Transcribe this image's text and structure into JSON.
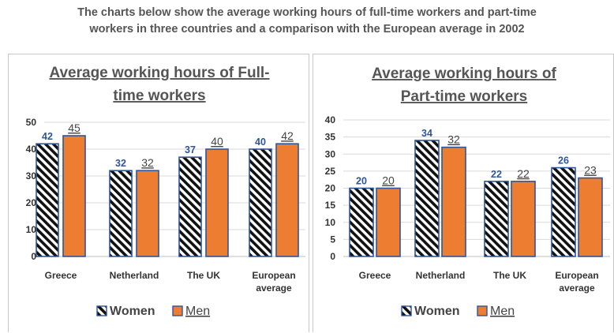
{
  "heading": {
    "line1": "The charts below show the average working hours of full-time workers and part-time",
    "line2": "workers in three countries and a comparison with the European average in 2002"
  },
  "colors": {
    "men": "#ed7d31",
    "border": "#2f5597",
    "women_label": "#2f5597",
    "men_label": "#444444",
    "axis_text": "#333333",
    "grid": "#d9d9d9"
  },
  "chart_data": [
    {
      "type": "bar",
      "title_lines": [
        "Average working hours of Full-",
        "time workers"
      ],
      "categories": [
        [
          "Greece"
        ],
        [
          "Netherland"
        ],
        [
          "The UK"
        ],
        [
          "European",
          "average"
        ]
      ],
      "series": [
        {
          "name": "Women",
          "values": [
            42,
            32,
            37,
            40
          ],
          "pattern": "diagonal-hatch"
        },
        {
          "name": "Men",
          "values": [
            45,
            32,
            40,
            42
          ],
          "pattern": "solid-orange"
        }
      ],
      "ylim": [
        0,
        50
      ],
      "yticks": [
        0,
        10,
        20,
        30,
        40,
        50
      ],
      "ytick_labels": [
        "0",
        "10",
        "20",
        "30",
        "40",
        "50"
      ],
      "grid": true,
      "legend_position": "bottom-center"
    },
    {
      "type": "bar",
      "title_lines": [
        "Average working hours of",
        "Part-time workers"
      ],
      "categories": [
        [
          "Greece"
        ],
        [
          "Netherland"
        ],
        [
          "The UK"
        ],
        [
          "European",
          "average"
        ]
      ],
      "series": [
        {
          "name": "Women",
          "values": [
            20,
            34,
            22,
            26
          ],
          "pattern": "diagonal-hatch"
        },
        {
          "name": "Men",
          "values": [
            20,
            32,
            22,
            23
          ],
          "pattern": "solid-orange"
        }
      ],
      "ylim": [
        0,
        40
      ],
      "yticks": [
        0,
        5,
        10,
        15,
        20,
        25,
        30,
        35,
        40
      ],
      "ytick_labels": [
        "0",
        "5",
        "10",
        "15",
        "20",
        "25",
        "30",
        "35",
        "40"
      ],
      "grid": true,
      "legend_position": "bottom-center"
    }
  ]
}
